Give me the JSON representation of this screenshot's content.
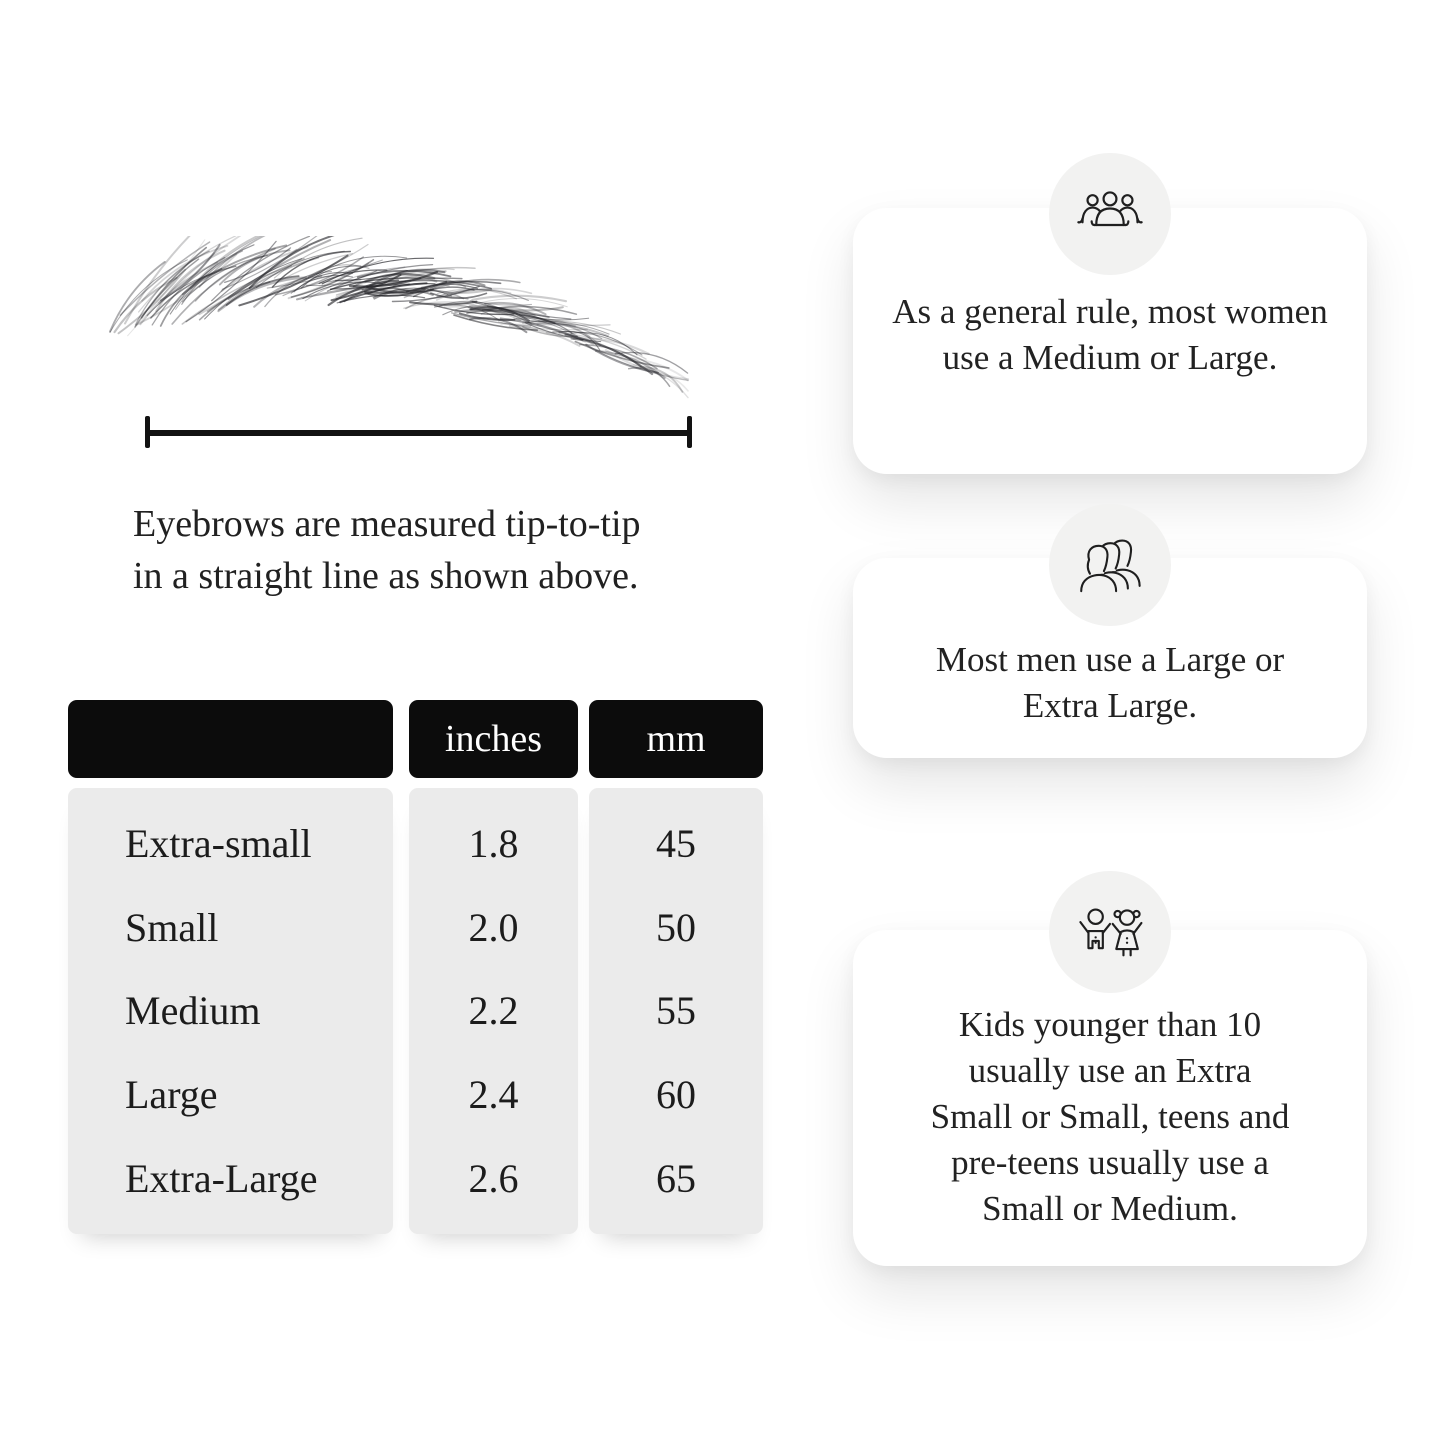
{
  "measurement": {
    "caption": "Eyebrows are measured tip-to-tip in a straight line as shown above.",
    "caption_lines": [
      "Eyebrows are measured tip-to-tip",
      "in a straight line as shown above."
    ]
  },
  "size_table": {
    "headers": [
      "",
      "inches",
      "mm"
    ],
    "rows": [
      {
        "label": "Extra-small",
        "inches": "1.8",
        "mm": "45"
      },
      {
        "label": "Small",
        "inches": "2.0",
        "mm": "50"
      },
      {
        "label": "Medium",
        "inches": "2.2",
        "mm": "55"
      },
      {
        "label": "Large",
        "inches": "2.4",
        "mm": "60"
      },
      {
        "label": "Extra-Large",
        "inches": "2.6",
        "mm": "65"
      }
    ]
  },
  "tips": [
    {
      "icon": "women-group-icon",
      "text": "As a general rule, most women use a Medium or Large.",
      "lines": [
        "As a general rule, most women",
        "use a Medium or Large."
      ]
    },
    {
      "icon": "men-group-icon",
      "text": "Most men use a Large or Extra Large.",
      "lines": [
        "Most men use a Large or",
        "Extra Large."
      ]
    },
    {
      "icon": "children-icon",
      "text": "Kids younger than 10 usually use an Extra Small or Small, teens and pre-teens usually use a Small or Medium.",
      "lines": [
        "Kids younger than 10",
        "usually use an Extra",
        "Small or Small, teens and",
        "pre-teens usually use a",
        "Small or Medium."
      ]
    }
  ],
  "colors": {
    "header_bg": "#0c0c0c",
    "header_text": "#ffffff",
    "row_bg": "#ebebeb",
    "card_bg": "#ffffff",
    "badge_bg": "#f2f2f1",
    "text": "#1d1d1d",
    "ruler": "#121212"
  },
  "chart_data": {
    "type": "table",
    "columns": [
      "",
      "inches",
      "mm"
    ],
    "rows": [
      [
        "Extra-small",
        1.8,
        45
      ],
      [
        "Small",
        2.0,
        50
      ],
      [
        "Medium",
        2.2,
        55
      ],
      [
        "Large",
        2.4,
        60
      ],
      [
        "Extra-Large",
        2.6,
        65
      ]
    ]
  }
}
